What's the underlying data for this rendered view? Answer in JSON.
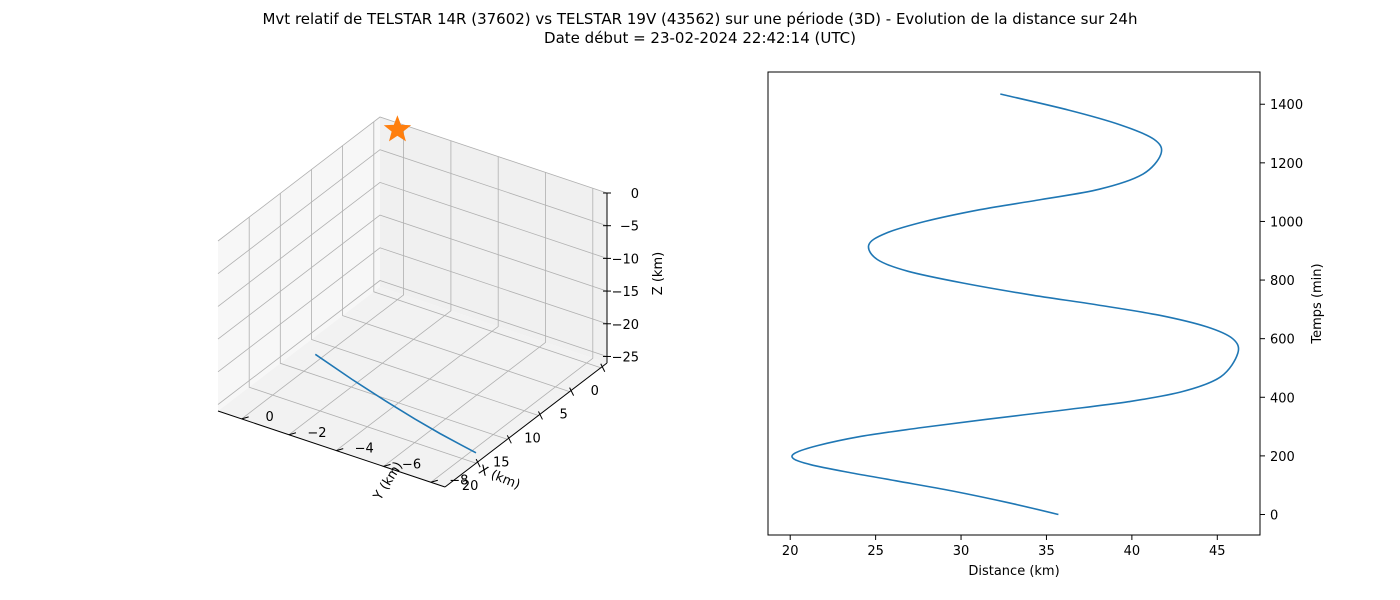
{
  "header": {
    "title": "Mvt relatif de TELSTAR 14R (37602) vs TELSTAR 19V (43562) sur une période (3D) - Evolution de la distance sur 24h",
    "subtitle": "Date début = 23-02-2024 22:42:14 (UTC)"
  },
  "colors": {
    "series": "#1f77b4",
    "marker": "#ff7f0e",
    "grid": "#b0b0b0",
    "pane_left": "#f7f7f7",
    "pane_right": "#f0f0f0",
    "pane_floor": "#f2f2f2"
  },
  "chart_data": [
    {
      "type": "line3d",
      "xlabel": "X (km)",
      "ylabel": "Y (km)",
      "zlabel": "Z (km)",
      "x_ticks": [
        0,
        5,
        10,
        15,
        20
      ],
      "y_ticks": [
        0,
        -2,
        -4,
        -6,
        -8
      ],
      "z_ticks": [
        0,
        -5,
        -10,
        -15,
        -20,
        -25
      ],
      "x_tick_labels": [
        "0",
        "5",
        "10",
        "15",
        "20"
      ],
      "y_tick_labels": [
        "0",
        "−2",
        "−4",
        "−6",
        "−8"
      ],
      "z_tick_labels": [
        "0",
        "−5",
        "−10",
        "−15",
        "−20",
        "−25"
      ],
      "xlim": [
        -1,
        25
      ],
      "ylim": [
        1,
        -8.6
      ],
      "zlim": [
        0,
        -26
      ],
      "grid": true,
      "series": [
        {
          "x": [
            18.5,
            19.5,
            20.5,
            21.5,
            22.4,
            23.2,
            23.8
          ],
          "y": [
            -8.2,
            -7.8,
            -7.2,
            -6.4,
            -5.4,
            -4.2,
            -2.8
          ],
          "z": [
            -26,
            -24.5,
            -22.8,
            -20.8,
            -18.6,
            -16.2,
            -13.6
          ]
        }
      ],
      "markers": [
        {
          "shape": "star",
          "x": 0,
          "y": 0,
          "z": 0
        }
      ]
    },
    {
      "type": "line",
      "xlabel": "Distance (km)",
      "ylabel": "Temps (min)",
      "x_ticks": [
        20,
        25,
        30,
        35,
        40,
        45
      ],
      "y_ticks": [
        0,
        200,
        400,
        600,
        800,
        1000,
        1200,
        1400
      ],
      "xlim": [
        18.7,
        47.5
      ],
      "ylim": [
        -70,
        1510
      ],
      "grid": false,
      "y_axis_position": "right",
      "series": [
        {
          "x": [
            35.7,
            32.8,
            29.5,
            26.2,
            23.3,
            21.2,
            20.2,
            20.3,
            21.6,
            24.0,
            27.5,
            31.5,
            35.8,
            39.8,
            43.0,
            45.2,
            46.2,
            45.9,
            44.4,
            41.6,
            38.0,
            34.0,
            30.1,
            26.9,
            25.1,
            24.6,
            25.6,
            27.9,
            31.1,
            34.7,
            38.1,
            40.6,
            41.7,
            41.3,
            39.3,
            36.3,
            32.3
          ],
          "y": [
            0,
            40,
            80,
            115,
            145,
            170,
            190,
            210,
            235,
            265,
            295,
            325,
            355,
            385,
            420,
            470,
            550,
            600,
            640,
            680,
            715,
            750,
            790,
            830,
            870,
            920,
            960,
            1000,
            1040,
            1075,
            1110,
            1160,
            1230,
            1280,
            1330,
            1380,
            1435
          ]
        }
      ]
    }
  ]
}
